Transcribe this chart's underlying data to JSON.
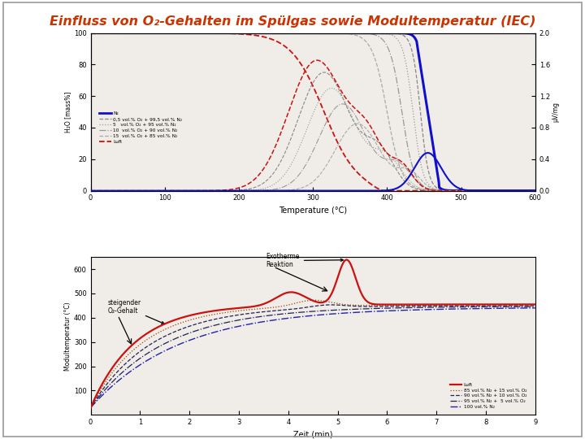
{
  "title": "Einfluss von O₂-Gehalten im Spülgas sowie Modultemperatur (IEC)",
  "title_color": "#cc3300",
  "bg_color": "#ffffff",
  "slide_border_color": "#aaaaaa",
  "top_chart": {
    "xlabel": "Temperature (°C)",
    "ylabel_left": "H₂O [mass%]",
    "ylabel_right": "μV/mg",
    "xlim": [
      0,
      600
    ],
    "ylim_left": [
      0,
      100
    ],
    "ylim_right": [
      0.0,
      2.0
    ],
    "yticks_left": [
      0,
      20,
      40,
      60,
      80,
      100
    ],
    "yticks_right": [
      0.0,
      0.4,
      0.8,
      1.2,
      1.6,
      2.0
    ],
    "xticks": [
      0,
      100,
      200,
      300,
      400,
      500,
      600
    ]
  },
  "bottom_chart": {
    "xlabel": "Zeit (min)",
    "xlim": [
      0,
      9
    ],
    "ylim": [
      0,
      650
    ],
    "yticks": [
      100,
      200,
      300,
      400,
      500,
      600
    ],
    "xticks": [
      0,
      1,
      2,
      3,
      4,
      5,
      6,
      7,
      8,
      9
    ]
  }
}
